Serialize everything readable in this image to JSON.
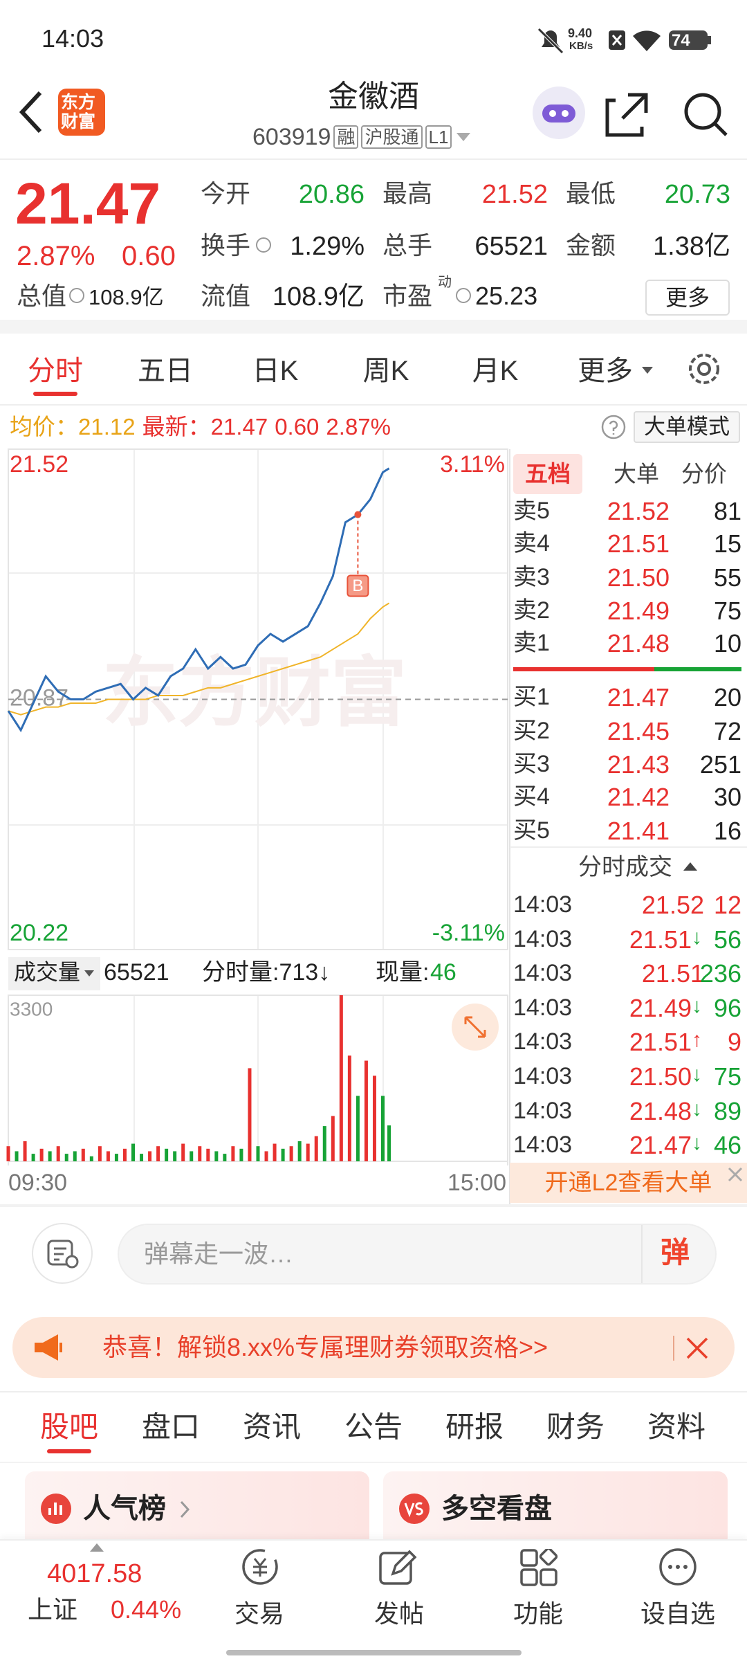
{
  "status_bar": {
    "time": "14:03",
    "net_speed": "9.40",
    "net_unit": "KB/s",
    "battery": "74"
  },
  "header": {
    "logo_lines": [
      "东方",
      "财富"
    ],
    "title": "金徽酒",
    "code": "603919",
    "tags": [
      "融",
      "沪股通",
      "L1"
    ]
  },
  "quote": {
    "price": "21.47",
    "change_pct": "2.87%",
    "change": "0.60",
    "stats": [
      {
        "label": "今开",
        "value": "20.86",
        "color": "#17a336"
      },
      {
        "label": "最高",
        "value": "21.52",
        "color": "#e8312f"
      },
      {
        "label": "最低",
        "value": "20.73",
        "color": "#17a336"
      },
      {
        "label": "换手",
        "value": "1.29%",
        "color": "#222222"
      },
      {
        "label": "总手",
        "value": "65521",
        "color": "#222222"
      },
      {
        "label": "金额",
        "value": "1.38亿",
        "color": "#222222"
      },
      {
        "label": "总值",
        "value": "108.9亿",
        "color": "#222222"
      },
      {
        "label": "流值",
        "value": "108.9亿",
        "color": "#222222"
      },
      {
        "label": "市盈",
        "value": "25.23",
        "color": "#222222"
      }
    ],
    "pe_sup": "动",
    "more_button": "更多"
  },
  "tabs": [
    "分时",
    "五日",
    "日K",
    "周K",
    "月K",
    "更多"
  ],
  "info_line": {
    "avg_label": "均价：",
    "avg": "21.12",
    "latest_label": "最新：",
    "latest": "21.47",
    "change": "0.60",
    "change_pct": "2.87%",
    "mode_button": "大单模式"
  },
  "chart_data": {
    "type": "line",
    "watermark": "东方财富",
    "x": [
      0,
      6,
      12,
      18,
      24,
      30,
      36,
      42,
      48,
      54,
      60,
      66,
      72,
      78,
      84,
      90,
      96,
      102,
      108,
      114,
      120,
      126,
      132,
      138,
      144,
      150,
      156,
      162,
      168,
      174,
      180,
      183
    ],
    "series": [
      {
        "color": "#2f6db5",
        "values": [
          20.84,
          20.79,
          20.86,
          20.93,
          20.89,
          20.87,
          20.87,
          20.89,
          20.9,
          20.91,
          20.87,
          20.9,
          20.88,
          20.93,
          20.95,
          21.0,
          20.95,
          20.98,
          20.95,
          20.96,
          21.01,
          21.04,
          21.02,
          21.04,
          21.06,
          21.12,
          21.19,
          21.33,
          21.35,
          21.39,
          21.46,
          21.47
        ]
      },
      {
        "color": "#f0b429",
        "values": [
          20.84,
          20.83,
          20.84,
          20.85,
          20.85,
          20.86,
          20.86,
          20.86,
          20.87,
          20.87,
          20.87,
          20.87,
          20.88,
          20.88,
          20.88,
          20.89,
          20.9,
          20.9,
          20.91,
          20.92,
          20.93,
          20.94,
          20.95,
          20.96,
          20.97,
          20.98,
          21.0,
          21.02,
          21.04,
          21.08,
          21.11,
          21.12
        ]
      }
    ],
    "xlim": [
      0,
      240
    ],
    "xticks": [
      {
        "value": 0,
        "label": "09:30"
      },
      {
        "value": 240,
        "label": "15:00"
      }
    ],
    "ylim": [
      20.22,
      21.52
    ],
    "yticks": [
      21.52,
      20.87,
      20.22
    ],
    "ytick_colors": [
      "#e8312f",
      "#999999",
      "#17a336"
    ],
    "y2lim": [
      -3.11,
      3.11
    ],
    "y2ticks": [
      {
        "value": 3.11,
        "label": "3.11%"
      },
      {
        "value": -3.11,
        "label": "-3.11%"
      }
    ],
    "marker": {
      "label": "B",
      "x": 168,
      "value": 21.35
    },
    "volume": {
      "label": "成交量",
      "total": "65521",
      "minute_label": "分时量:713↓",
      "current_label": "现量:",
      "current": "46",
      "ylim": [
        0,
        3300
      ],
      "yticks": [
        3300
      ],
      "x": [
        0,
        4,
        8,
        12,
        16,
        20,
        24,
        28,
        32,
        36,
        40,
        44,
        48,
        52,
        56,
        60,
        64,
        68,
        72,
        76,
        80,
        84,
        88,
        92,
        96,
        100,
        104,
        108,
        112,
        116,
        120,
        124,
        128,
        132,
        136,
        140,
        144,
        148,
        152,
        156,
        160,
        164,
        168,
        172,
        176,
        180,
        183
      ],
      "values": [
        300,
        200,
        400,
        150,
        250,
        200,
        300,
        150,
        200,
        250,
        100,
        300,
        200,
        150,
        250,
        350,
        150,
        200,
        300,
        250,
        200,
        350,
        200,
        300,
        250,
        200,
        150,
        300,
        250,
        1850,
        300,
        200,
        350,
        250,
        300,
        400,
        350,
        500,
        700,
        900,
        3300,
        2100,
        1300,
        2000,
        1700,
        1300,
        713
      ],
      "colors": [
        "#e8312f",
        "#17a336",
        "#e8312f",
        "#17a336",
        "#e8312f",
        "#17a336",
        "#e8312f",
        "#17a336",
        "#17a336",
        "#e8312f",
        "#17a336",
        "#e8312f",
        "#e8312f",
        "#17a336",
        "#e8312f",
        "#17a336",
        "#17a336",
        "#e8312f",
        "#e8312f",
        "#17a336",
        "#17a336",
        "#e8312f",
        "#17a336",
        "#e8312f",
        "#e8312f",
        "#17a336",
        "#17a336",
        "#e8312f",
        "#17a336",
        "#e8312f",
        "#17a336",
        "#e8312f",
        "#e8312f",
        "#17a336",
        "#e8312f",
        "#17a336",
        "#e8312f",
        "#e8312f",
        "#17a336",
        "#e8312f",
        "#e8312f",
        "#e8312f",
        "#17a336",
        "#e8312f",
        "#e8312f",
        "#17a336",
        "#17a336"
      ]
    }
  },
  "order_book": {
    "tabs": [
      "五档",
      "大单",
      "分价"
    ],
    "asks": [
      {
        "label": "卖5",
        "price": "21.52",
        "volume": "81"
      },
      {
        "label": "卖4",
        "price": "21.51",
        "volume": "15"
      },
      {
        "label": "卖3",
        "price": "21.50",
        "volume": "55"
      },
      {
        "label": "卖2",
        "price": "21.49",
        "volume": "75"
      },
      {
        "label": "卖1",
        "price": "21.48",
        "volume": "10"
      }
    ],
    "bids": [
      {
        "label": "买1",
        "price": "21.47",
        "volume": "20"
      },
      {
        "label": "买2",
        "price": "21.45",
        "volume": "72"
      },
      {
        "label": "买3",
        "price": "21.43",
        "volume": "251"
      },
      {
        "label": "买4",
        "price": "21.42",
        "volume": "30"
      },
      {
        "label": "买5",
        "price": "21.41",
        "volume": "16"
      }
    ],
    "trades_title": "分时成交",
    "trades": [
      {
        "time": "14:03",
        "price": "21.52",
        "volume": "12",
        "color": "#e8312f"
      },
      {
        "time": "14:03",
        "price": "21.51",
        "arrow": "↓",
        "volume": "56",
        "color": "#17a336"
      },
      {
        "time": "14:03",
        "price": "21.51",
        "volume": "236",
        "color": "#17a336"
      },
      {
        "time": "14:03",
        "price": "21.49",
        "arrow": "↓",
        "volume": "96",
        "color": "#17a336"
      },
      {
        "time": "14:03",
        "price": "21.51",
        "arrow": "↑",
        "volume": "9",
        "color": "#e8312f"
      },
      {
        "time": "14:03",
        "price": "21.50",
        "arrow": "↓",
        "volume": "75",
        "color": "#17a336"
      },
      {
        "time": "14:03",
        "price": "21.48",
        "arrow": "↓",
        "volume": "89",
        "color": "#17a336"
      },
      {
        "time": "14:03",
        "price": "21.47",
        "arrow": "↓",
        "volume": "46",
        "color": "#17a336"
      }
    ],
    "l2_banner": "开通L2查看大单"
  },
  "comment": {
    "placeholder": "弹幕走一波…",
    "button": "弹"
  },
  "promo": "恭喜！解锁8.xx%专属理财券领取资格>>",
  "section_tabs": [
    "股吧",
    "盘口",
    "资讯",
    "公告",
    "研报",
    "财务",
    "资料"
  ],
  "cards": [
    "人气榜",
    "多空看盘"
  ],
  "bottom_bar": {
    "index_value": "4017.58",
    "index_name": "上证",
    "index_change": "0.44%",
    "nav": [
      "交易",
      "发帖",
      "功能",
      "设自选"
    ]
  }
}
